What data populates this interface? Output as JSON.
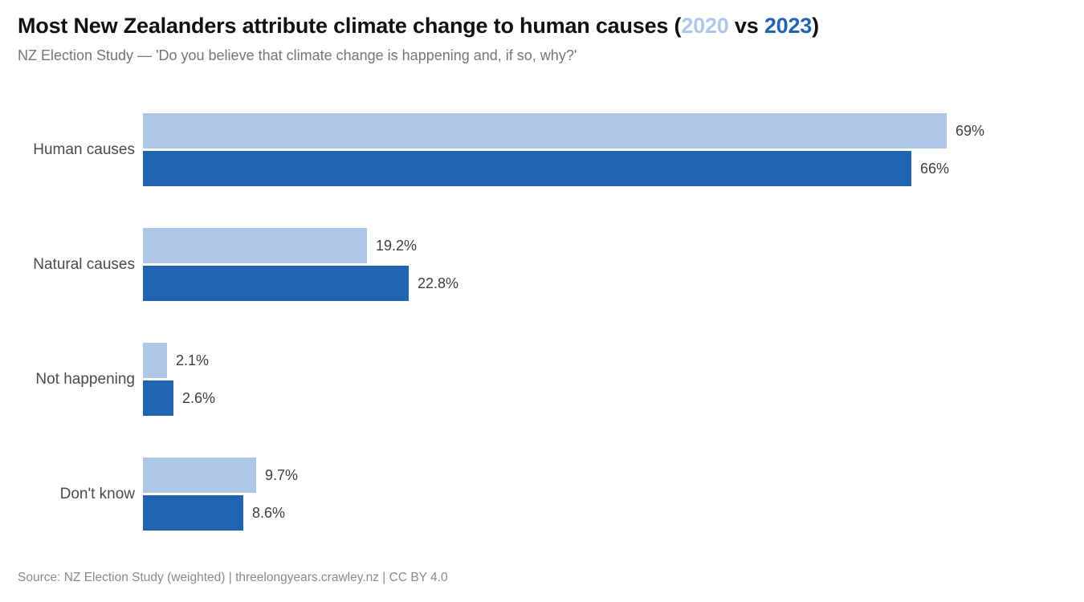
{
  "chart_data": {
    "type": "bar",
    "orientation": "horizontal",
    "title": "Most New Zealanders attribute climate change to human causes (2020 vs 2023)",
    "title_parts": {
      "prefix": "Most New Zealanders attribute climate change to human causes (",
      "year_2020": "2020",
      "mid": " vs ",
      "year_2023": "2023",
      "suffix": ")"
    },
    "subtitle": "NZ Election Study — 'Do you believe that climate change is happening and, if so, why?'",
    "categories": [
      "Human causes",
      "Natural causes",
      "Not happening",
      "Don't know"
    ],
    "series": [
      {
        "name": "2020",
        "color": "#aec7e8",
        "values": [
          69,
          19.2,
          2.1,
          9.7
        ],
        "labels": [
          "69%",
          "19.2%",
          "2.1%",
          "9.7%"
        ]
      },
      {
        "name": "2023",
        "color": "#2264b2",
        "values": [
          66,
          22.8,
          2.6,
          8.6
        ],
        "labels": [
          "66%",
          "22.8%",
          "2.6%",
          "8.6%"
        ]
      }
    ],
    "xlim": [
      0,
      69
    ],
    "grid": false,
    "legend": "title-inline-colored-years",
    "source": "Source: NZ Election Study (weighted) | threelongyears.crawley.nz | CC BY 4.0"
  }
}
